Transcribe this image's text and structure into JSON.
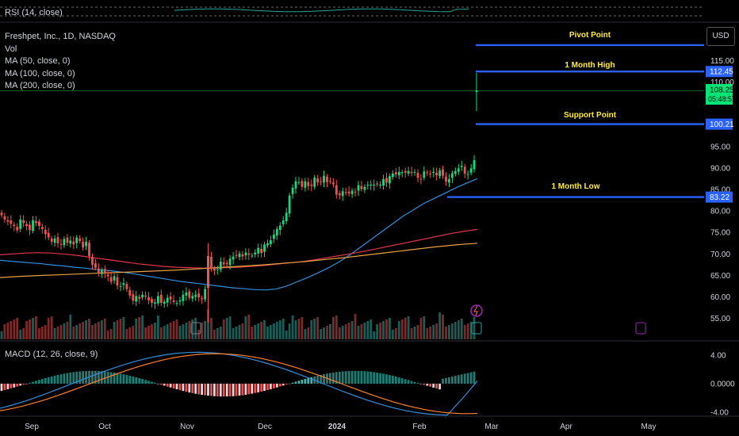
{
  "rsi_pane": {
    "title": "RSI (14, close)"
  },
  "main_pane": {
    "title": "Freshpet, Inc., 1D, NASDAQ",
    "indicators": [
      "Vol",
      "MA (50, close, 0)",
      "MA (100, close, 0)",
      "MA (200, close, 0)"
    ],
    "currency_button": "USD"
  },
  "macd_pane": {
    "title": "MACD (12, 26, close, 9)",
    "y_ticks": [
      "4.00",
      "0.0000",
      "-4.00"
    ]
  },
  "colors": {
    "up": "#26a69a",
    "up_bright": "#00e676",
    "down": "#ef5350",
    "ma50": "#2f8fde",
    "ma100": "#e0354a",
    "ma200": "#e6a23c",
    "level_line": "#2962ff",
    "annotation_text": "#ffeb3b",
    "macd_line": "#2f8fde",
    "signal_line": "#ff7f27"
  },
  "chart_data": {
    "type": "candlestick",
    "symbol": "Freshpet, Inc.",
    "interval": "1D",
    "exchange": "NASDAQ",
    "y_ticks": [
      "115.00",
      "110.00",
      "95.00",
      "90.00",
      "85.00",
      "80.00",
      "75.00",
      "70.00",
      "65.00",
      "60.00",
      "55.00"
    ],
    "x_ticks": [
      "Sep",
      "Oct",
      "Nov",
      "Dec",
      "2024",
      "Feb",
      "Mar",
      "Apr",
      "May"
    ],
    "price_labels": [
      {
        "value": "112.45",
        "color": "#2962ff"
      },
      {
        "value": "108.25",
        "color": "#00e676",
        "sub": "05:48:57"
      },
      {
        "value": "100.21",
        "color": "#2962ff"
      },
      {
        "value": "83.22",
        "color": "#2962ff"
      }
    ],
    "levels": [
      {
        "label": "Pivot Point",
        "value": 118.6
      },
      {
        "label": "1 Month High",
        "value": 112.45
      },
      {
        "label": "Support Point",
        "value": 100.21
      },
      {
        "label": "1 Month Low",
        "value": 83.22
      }
    ],
    "close_series": [
      79,
      78,
      77.5,
      77,
      76.5,
      75.5,
      78,
      77.2,
      76.5,
      75.6,
      77.8,
      77.2,
      76.5,
      75.8,
      74.6,
      73.8,
      72.8,
      73.6,
      72.5,
      72.2,
      73.5,
      72.6,
      73.1,
      72.2,
      73.8,
      73,
      71.5,
      72.8,
      69.5,
      67.5,
      66.8,
      65.5,
      66.2,
      65.4,
      64.8,
      63.5,
      64.8,
      62.6,
      62.5,
      63.2,
      61.8,
      60.3,
      59.1,
      60.2,
      59.6,
      60.5,
      60.1,
      59.2,
      58.6,
      58.7,
      60.2,
      58.6,
      58.9,
      59.8,
      59.4,
      58.8,
      58.6,
      59.2,
      60.5,
      61,
      59.8,
      60.2,
      60.5,
      59.9,
      59.6,
      61.8,
      69.5,
      66.8,
      66.1,
      66.5,
      68.2,
      67.6,
      67.6,
      68.9,
      69.4,
      69.5,
      70.1,
      69.4,
      70.3,
      69.8,
      69.6,
      70.3,
      71.4,
      70.2,
      72.2,
      72.5,
      73.2,
      74.5,
      75.8,
      76.6,
      77.8,
      79.6,
      83.6,
      85.4,
      86.9,
      86.7,
      85.6,
      86.9,
      85.8,
      85.8,
      87.8,
      86.6,
      86.8,
      88.2,
      86.7,
      86.8,
      86.2,
      83.8,
      83.7,
      84.6,
      84.2,
      84.1,
      84.7,
      84.4,
      86,
      85.1,
      85.6,
      86.1,
      86.1,
      86.1,
      86.2,
      86.1,
      87.4,
      86.6,
      88.1,
      88.7,
      88.5,
      89.1,
      89,
      88.9,
      89.3,
      88.8,
      89.1,
      87.7,
      87.4,
      89.2,
      88.9,
      88.6,
      89.1,
      88.3,
      89.4,
      88.2,
      86.8,
      87.4,
      88.8,
      89.3,
      89.9,
      90.5,
      88.7,
      88.6,
      89.9,
      91.8
    ],
    "ma50": [
      68.5,
      68.3,
      68.1,
      67.9,
      67.7,
      67.4,
      67.2,
      66.9,
      66.7,
      66.4,
      66.2,
      65.9,
      65.6,
      65.2,
      64.8,
      64.4,
      64,
      63.6,
      63.3,
      63,
      62.7,
      62.4,
      62.1,
      61.9,
      61.7,
      61.6,
      61.8,
      62.5,
      63.5,
      64.5,
      65.6,
      66.8,
      68.2,
      69.8,
      71.6,
      73.4,
      75.2,
      77,
      78.8,
      80.3,
      81.8,
      83,
      84.2,
      85.4,
      86.5,
      87.5
    ],
    "ma100": [
      69.8,
      70,
      70.2,
      70.3,
      70.2,
      70,
      69.7,
      69.3,
      68.9,
      68.5,
      68.1,
      67.7,
      67.4,
      67.1,
      66.9,
      66.8,
      66.7,
      66.7,
      66.8,
      66.9,
      67.1,
      67.3,
      67.6,
      67.9,
      68.2,
      68.6,
      69.1,
      69.6,
      70.1,
      70.6,
      71.2,
      71.8,
      72.4,
      73,
      73.6,
      74.2,
      74.8,
      75.3,
      75.7
    ],
    "ma200": [
      64.5,
      64.8,
      65,
      65.2,
      65.4,
      65.6,
      65.8,
      66,
      66.2,
      66.5,
      66.8,
      67.1,
      67.4,
      67.8,
      68.2,
      68.7,
      69.2,
      69.8,
      70.4,
      71,
      71.6,
      72.1,
      72.5
    ],
    "macd_range": [
      -4,
      4
    ]
  }
}
